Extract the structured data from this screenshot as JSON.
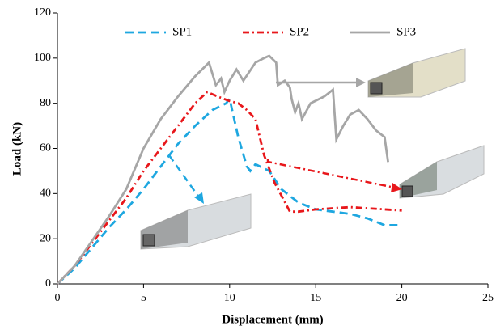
{
  "chart_data": {
    "type": "line",
    "x_label": "Displacement (mm)",
    "y_label": "Load (kN)",
    "xlim": [
      0,
      25
    ],
    "xticks": [
      0,
      5,
      10,
      15,
      20,
      25
    ],
    "ylim": [
      0,
      120
    ],
    "yticks": [
      0,
      20,
      40,
      60,
      80,
      100,
      120
    ],
    "legend": "top",
    "series": [
      {
        "name": "SP1",
        "color": "#1ea7e0",
        "dash": "dash",
        "x": [
          0,
          1,
          2,
          3,
          4,
          5,
          6,
          7,
          8,
          9,
          9.8,
          10,
          10.5,
          11,
          11.2,
          11.5,
          12.3,
          13,
          14,
          15,
          16,
          17,
          18,
          19,
          19.8
        ],
        "values": [
          0,
          7,
          16,
          25,
          33,
          42,
          52,
          62,
          70,
          77,
          80,
          82,
          65,
          52,
          50,
          53,
          50,
          42,
          36,
          33,
          32,
          31,
          29,
          26,
          26
        ]
      },
      {
        "name": "SP2",
        "color": "#e8171b",
        "dash": "dashdot",
        "x": [
          0,
          1,
          2,
          3,
          4,
          5,
          6,
          7,
          8,
          8.7,
          9.3,
          10,
          10.5,
          11,
          11.5,
          12,
          12.6,
          13.5,
          14,
          15,
          16,
          17,
          18,
          19,
          20
        ],
        "values": [
          0,
          8,
          18,
          28,
          38,
          50,
          60,
          70,
          80,
          85,
          83,
          81,
          80,
          77,
          73,
          57,
          45,
          32,
          32,
          33,
          33.5,
          34,
          33.5,
          33,
          32.5
        ]
      },
      {
        "name": "SP3",
        "color": "#a6a6a6",
        "dash": "solid",
        "x": [
          0,
          1,
          2,
          3,
          4,
          5,
          6,
          7,
          8,
          8.8,
          9.2,
          9.5,
          9.7,
          10,
          10.4,
          10.8,
          11.5,
          12,
          12.3,
          12.7,
          12.8,
          13.2,
          13.5,
          13.6,
          13.8,
          14,
          14.2,
          14.7,
          15.5,
          16,
          16.2,
          16.6,
          17,
          17.5,
          18,
          18.5,
          19,
          19.2
        ],
        "values": [
          0,
          8,
          19,
          30,
          42,
          60,
          73,
          83,
          92,
          98,
          88,
          91,
          85,
          90,
          95,
          90,
          98,
          100,
          101,
          98,
          88,
          90,
          87,
          82,
          76,
          80,
          73,
          80,
          83,
          86,
          64,
          70,
          75,
          77,
          73,
          68,
          65,
          54
        ]
      }
    ]
  }
}
